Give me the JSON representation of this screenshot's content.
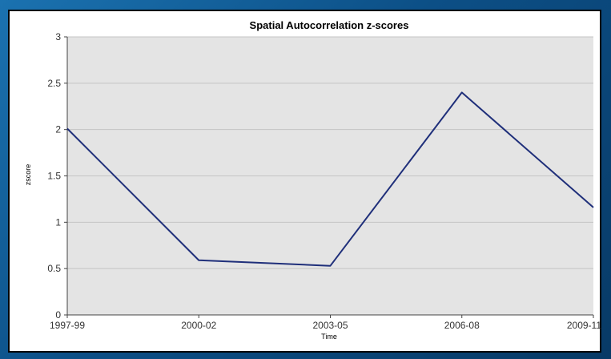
{
  "chart_data": {
    "type": "line",
    "title": "Spatial Autocorrelation z-scores",
    "xlabel": "Time",
    "ylabel": "zscore",
    "categories": [
      "1997-99",
      "2000-02",
      "2003-05",
      "2006-08",
      "2009-11"
    ],
    "series": [
      {
        "values": [
          2.01,
          0.59,
          0.53,
          2.4,
          1.16
        ]
      }
    ],
    "ylim": [
      0,
      3
    ],
    "yticks": [
      "0",
      "0.5",
      "1",
      "1.5",
      "2",
      "2.5",
      "3"
    ],
    "grid": true,
    "legend": "none",
    "colors": {
      "line": "#1f2f7a",
      "plot_bg": "#e4e4e4",
      "grid": "#c4c4c4"
    }
  }
}
